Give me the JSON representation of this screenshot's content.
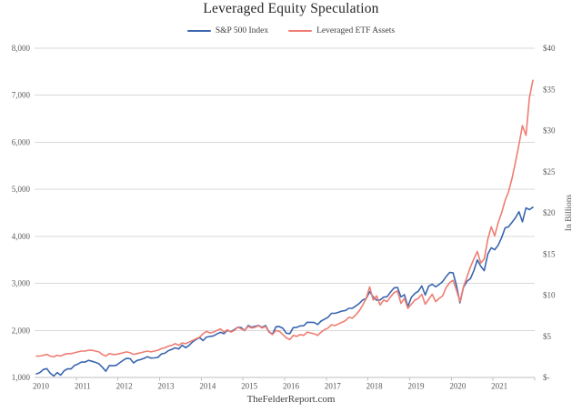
{
  "chart": {
    "title": "Leveraged Equity Speculation",
    "source": "TheFelderReport.com",
    "series_labels": [
      "S&P 500 Index",
      "Leveraged ETF Assets"
    ]
  },
  "theme": {
    "sp500_color": "#3a66ae",
    "letf_color": "#ef7d74",
    "gridline_color": "#d9d9d9",
    "axis_line_color": "#bfbfbf",
    "axis_text_color": "#595959"
  },
  "chart_data": {
    "type": "line",
    "title": "Leveraged Equity Speculation",
    "subtitle": "",
    "grid": "horizontal",
    "legend_position": "top",
    "x_unit": "month",
    "x_range": [
      "2010-01",
      "2021-12"
    ],
    "x_tick_labels": [
      "2010",
      "2011",
      "2012",
      "2013",
      "2014",
      "2015",
      "2016",
      "2017",
      "2018",
      "2019",
      "2020",
      "2021"
    ],
    "left_axis": {
      "min": 1000,
      "max": 8000,
      "ticks": [
        {
          "value": 1000,
          "label": "1,000"
        },
        {
          "value": 2000,
          "label": "2,000"
        },
        {
          "value": 3000,
          "label": "3,000"
        },
        {
          "value": 4000,
          "label": "4,000"
        },
        {
          "value": 5000,
          "label": "5,000"
        },
        {
          "value": 6000,
          "label": "6,000"
        },
        {
          "value": 7000,
          "label": "7,000"
        },
        {
          "value": 8000,
          "label": "8,000"
        }
      ],
      "title": ""
    },
    "right_axis": {
      "min": 0,
      "max": 40,
      "ticks": [
        {
          "value": 0,
          "label": "$-"
        },
        {
          "value": 5,
          "label": "$5"
        },
        {
          "value": 10,
          "label": "$10"
        },
        {
          "value": 15,
          "label": "$15"
        },
        {
          "value": 20,
          "label": "$20"
        },
        {
          "value": 25,
          "label": "$25"
        },
        {
          "value": 30,
          "label": "$30"
        },
        {
          "value": 35,
          "label": "$35"
        },
        {
          "value": 40,
          "label": "$40"
        }
      ],
      "title": "In Billions"
    },
    "series": [
      {
        "name": "S&P 500 Index",
        "axis": "left",
        "color": "#3a66ae",
        "values": [
          1074,
          1104,
          1169,
          1187,
          1089,
          1031,
          1102,
          1049,
          1141,
          1183,
          1181,
          1258,
          1286,
          1327,
          1326,
          1364,
          1345,
          1321,
          1292,
          1219,
          1131,
          1253,
          1247,
          1258,
          1312,
          1366,
          1408,
          1398,
          1310,
          1362,
          1379,
          1407,
          1441,
          1412,
          1416,
          1426,
          1498,
          1515,
          1569,
          1598,
          1631,
          1606,
          1686,
          1633,
          1682,
          1757,
          1806,
          1848,
          1783,
          1859,
          1872,
          1884,
          1924,
          1960,
          1931,
          2003,
          1972,
          2018,
          2068,
          2059,
          1995,
          2105,
          2068,
          2086,
          2107,
          2063,
          2104,
          1972,
          1920,
          2079,
          2080,
          2044,
          1940,
          1932,
          2060,
          2065,
          2097,
          2099,
          2174,
          2171,
          2168,
          2126,
          2199,
          2239,
          2279,
          2364,
          2363,
          2384,
          2412,
          2423,
          2470,
          2472,
          2519,
          2575,
          2648,
          2674,
          2824,
          2714,
          2641,
          2648,
          2705,
          2718,
          2816,
          2902,
          2914,
          2712,
          2760,
          2507,
          2704,
          2784,
          2834,
          2946,
          2752,
          2942,
          2980,
          2926,
          2977,
          3038,
          3141,
          3231,
          3226,
          2954,
          2585,
          2912,
          3044,
          3100,
          3271,
          3500,
          3363,
          3270,
          3622,
          3756,
          3714,
          3811,
          3973,
          4181,
          4204,
          4298,
          4395,
          4523,
          4308,
          4605,
          4567,
          4620
        ]
      },
      {
        "name": "Leveraged ETF Assets",
        "axis": "right",
        "color": "#ef7d74",
        "values": [
          2.6,
          2.6,
          2.7,
          2.8,
          2.6,
          2.5,
          2.7,
          2.6,
          2.8,
          2.9,
          2.9,
          3.0,
          3.1,
          3.2,
          3.2,
          3.3,
          3.3,
          3.2,
          3.1,
          2.8,
          2.6,
          2.9,
          2.8,
          2.8,
          2.9,
          3.0,
          3.1,
          3.0,
          2.8,
          2.9,
          3.0,
          3.1,
          3.2,
          3.1,
          3.2,
          3.3,
          3.5,
          3.6,
          3.8,
          3.9,
          4.1,
          3.9,
          4.2,
          4.1,
          4.3,
          4.5,
          4.7,
          4.9,
          5.3,
          5.6,
          5.4,
          5.5,
          5.7,
          5.9,
          5.5,
          5.8,
          5.5,
          5.7,
          6.1,
          5.9,
          5.7,
          6.2,
          6.0,
          6.1,
          6.3,
          6.0,
          6.2,
          5.5,
          5.2,
          5.7,
          5.6,
          5.2,
          4.8,
          4.6,
          5.1,
          5.0,
          5.2,
          5.1,
          5.5,
          5.4,
          5.3,
          5.1,
          5.5,
          5.8,
          6.0,
          6.4,
          6.3,
          6.5,
          6.7,
          6.9,
          7.3,
          7.2,
          7.6,
          8.1,
          8.8,
          9.6,
          11.0,
          9.4,
          9.9,
          8.8,
          9.4,
          9.2,
          9.8,
          10.3,
          10.5,
          9.0,
          9.6,
          8.4,
          8.9,
          9.4,
          9.6,
          10.1,
          8.9,
          9.5,
          10.1,
          9.2,
          9.6,
          9.9,
          10.9,
          11.5,
          11.8,
          10.6,
          9.2,
          11.0,
          12.2,
          13.4,
          14.4,
          15.3,
          13.9,
          14.4,
          16.8,
          18.3,
          17.2,
          18.8,
          20.0,
          21.5,
          22.6,
          24.2,
          26.2,
          28.3,
          30.6,
          29.4,
          34.0,
          36.1
        ]
      }
    ]
  }
}
